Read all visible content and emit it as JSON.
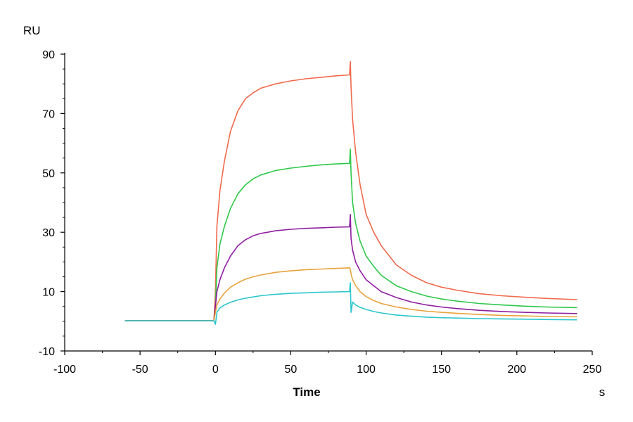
{
  "chart_data": {
    "type": "line",
    "xlabel": "Time",
    "x_unit": "s",
    "y_unit": "RU",
    "xlim": [
      -100,
      250
    ],
    "ylim": [
      -10,
      90
    ],
    "x_ticks": [
      -100,
      -50,
      0,
      50,
      100,
      150,
      200,
      250
    ],
    "y_ticks": [
      -10,
      10,
      30,
      50,
      70,
      90
    ],
    "x_tick_labels": [
      "-100",
      "-50",
      "0",
      "50",
      "100",
      "150",
      "200",
      "250"
    ],
    "y_tick_labels": [
      "-10",
      "10",
      "30",
      "50",
      "70",
      "90"
    ],
    "grid": false,
    "series": [
      {
        "color": "#f06a4c",
        "x": [
          -60,
          -1,
          0,
          1,
          3,
          6,
          10,
          15,
          20,
          25,
          30,
          40,
          50,
          60,
          70,
          80,
          89,
          89.5,
          90,
          91,
          93,
          96,
          100,
          105,
          110,
          120,
          130,
          140,
          150,
          160,
          175,
          190,
          205,
          220,
          240
        ],
        "y": [
          0.2,
          0.2,
          10,
          32,
          44,
          54,
          64,
          71,
          75,
          77,
          78.5,
          80,
          81,
          81.7,
          82.2,
          82.7,
          83,
          87.5,
          79,
          68,
          57,
          46,
          36,
          30,
          25.5,
          19,
          15.5,
          13,
          11.5,
          10.5,
          9.3,
          8.6,
          8.1,
          7.7,
          7.3
        ]
      },
      {
        "color": "#2ec84a",
        "x": [
          -60,
          -1,
          0,
          1,
          3,
          6,
          10,
          15,
          20,
          25,
          30,
          40,
          50,
          60,
          70,
          80,
          89,
          89.5,
          90,
          91,
          93,
          96,
          100,
          105,
          110,
          120,
          130,
          140,
          150,
          160,
          175,
          190,
          205,
          220,
          240
        ],
        "y": [
          0.2,
          0.2,
          5,
          18,
          26,
          32,
          38,
          43,
          46,
          48,
          49.3,
          50.8,
          51.6,
          52.2,
          52.7,
          53,
          53.2,
          58,
          50,
          40,
          33,
          27,
          22,
          18.5,
          15.5,
          12,
          10,
          8.5,
          7.5,
          6.8,
          6,
          5.5,
          5.1,
          4.8,
          4.6
        ]
      },
      {
        "color": "#8e1ea0",
        "x": [
          -60,
          -1,
          0,
          1,
          3,
          6,
          10,
          15,
          20,
          25,
          30,
          40,
          50,
          60,
          70,
          80,
          89,
          89.5,
          90,
          91,
          93,
          96,
          100,
          105,
          110,
          120,
          130,
          140,
          150,
          160,
          175,
          190,
          205,
          220,
          240
        ],
        "y": [
          0.2,
          0.2,
          5,
          10,
          14,
          18,
          22,
          25.5,
          27.5,
          28.8,
          29.6,
          30.5,
          31,
          31.3,
          31.5,
          31.7,
          31.8,
          36,
          28,
          24,
          20,
          17,
          14,
          12,
          10,
          8,
          6.5,
          5.5,
          4.8,
          4.3,
          3.7,
          3.3,
          3,
          2.8,
          2.6
        ]
      },
      {
        "color": "#e8a23a",
        "x": [
          -60,
          -1,
          0,
          1,
          3,
          6,
          10,
          15,
          20,
          25,
          30,
          40,
          50,
          60,
          70,
          80,
          89,
          89.5,
          90,
          91,
          93,
          96,
          100,
          105,
          110,
          120,
          130,
          140,
          150,
          160,
          175,
          190,
          205,
          220,
          240
        ],
        "y": [
          0.2,
          0.2,
          3,
          5.5,
          7.5,
          9.5,
          11.5,
          13,
          14.2,
          15,
          15.6,
          16.5,
          17,
          17.4,
          17.6,
          17.8,
          18,
          17.5,
          16,
          14,
          12,
          10,
          8.3,
          7,
          6,
          4.8,
          4,
          3.4,
          3,
          2.7,
          2.3,
          2,
          1.8,
          1.6,
          1.5
        ]
      },
      {
        "color": "#2cc6cc",
        "x": [
          -60,
          -1,
          0,
          0.5,
          1,
          3,
          6,
          10,
          15,
          20,
          25,
          30,
          40,
          50,
          60,
          70,
          80,
          89,
          89.5,
          90,
          91,
          93,
          96,
          100,
          105,
          110,
          120,
          130,
          140,
          150,
          160,
          175,
          190,
          205,
          220,
          240
        ],
        "y": [
          0.2,
          0.2,
          -1,
          1,
          3,
          4.5,
          5.5,
          6.4,
          7.2,
          7.8,
          8.2,
          8.6,
          9.1,
          9.4,
          9.6,
          9.8,
          9.9,
          10,
          13,
          3,
          6.5,
          5.5,
          4.7,
          4,
          3.3,
          2.8,
          2.1,
          1.7,
          1.4,
          1.2,
          1.1,
          0.9,
          0.8,
          0.7,
          0.6,
          0.5
        ]
      }
    ]
  }
}
